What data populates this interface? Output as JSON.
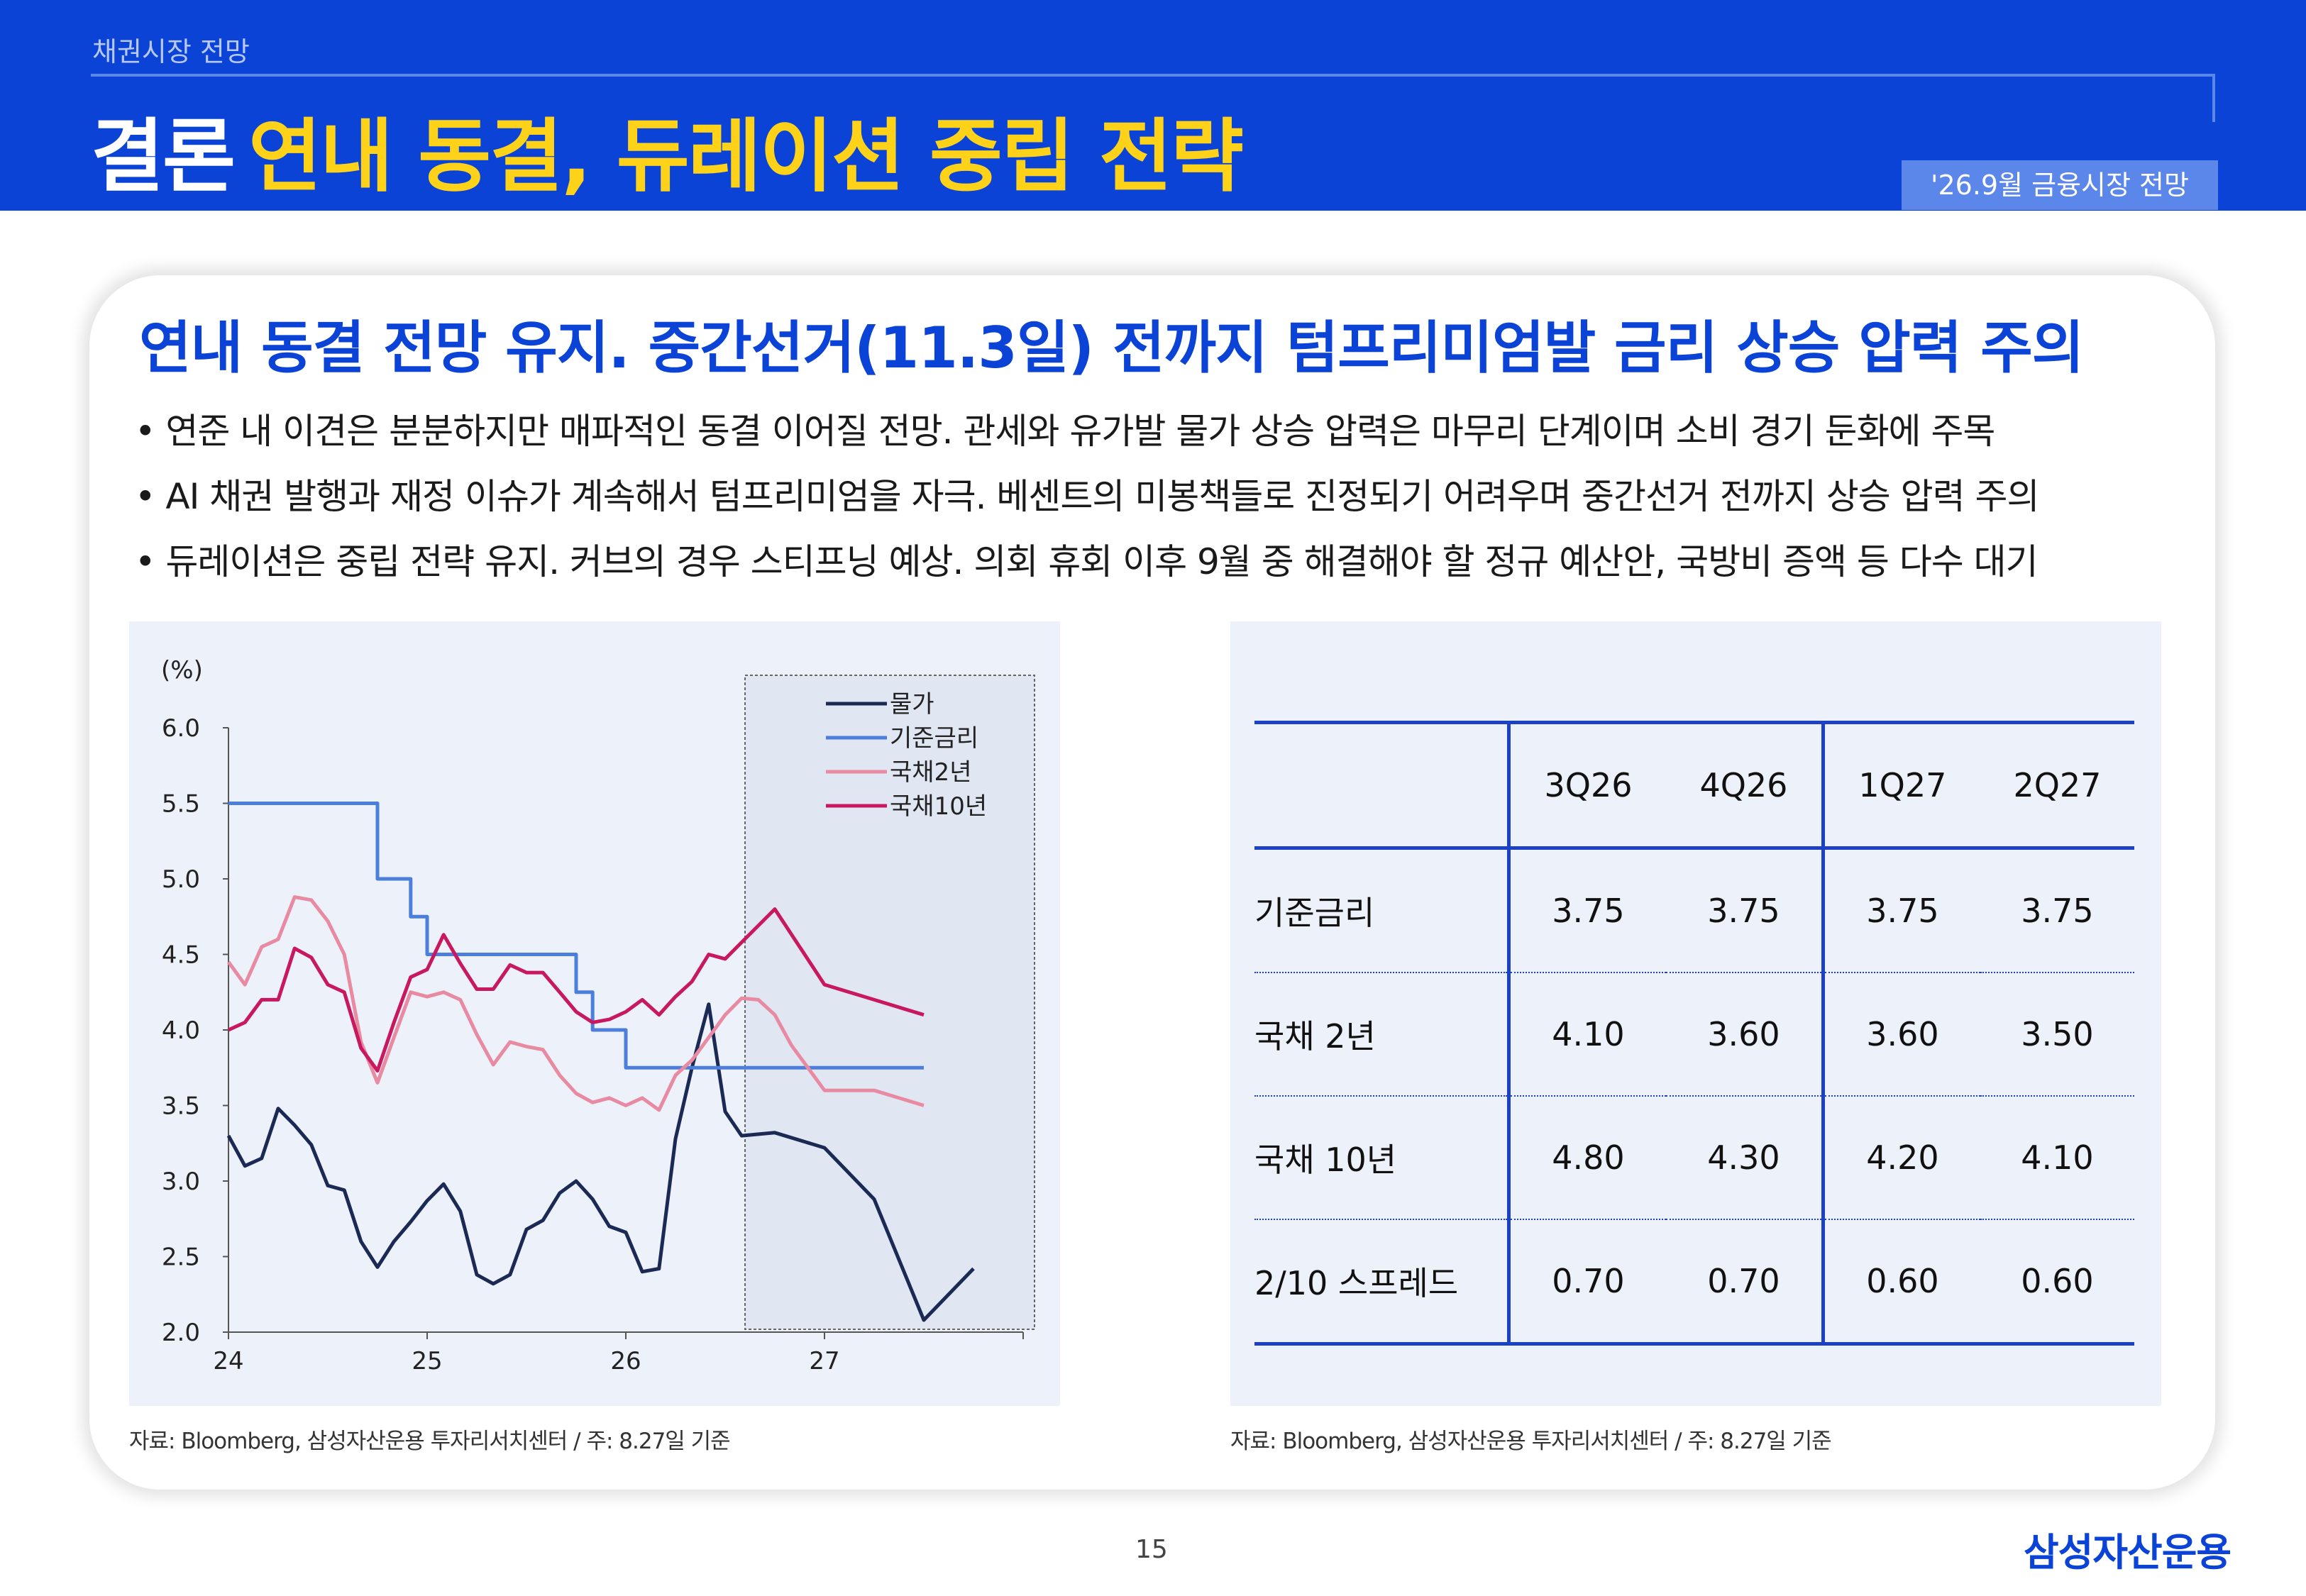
{
  "header": {
    "section_label": "채권시장 전망",
    "title_main": "결론",
    "title_accent": "연내 동결, 듀레이션 중립 전략",
    "date_badge": "'26.9월 금융시장 전망"
  },
  "subtitle": "연내 동결 전망 유지. 중간선거(11.3일) 전까지 텀프리미엄발 금리 상승 압력 주의",
  "bullets": [
    "• 연준 내 이견은 분분하지만 매파적인 동결 이어질 전망. 관세와 유가발 물가 상승 압력은 마무리 단계이며 소비 경기 둔화에 주목",
    "• AI 채권 발행과 재정 이슈가 계속해서 텀프리미엄을 자극. 베센트의 미봉책들로 진정되기 어려우며 중간선거 전까지 상승 압력 주의",
    "• 듀레이션은 중립 전략 유지. 커브의 경우 스티프닝 예상. 의회 휴회 이후 9월 중 해결해야 할 정규 예산안, 국방비 증액 등 다수 대기"
  ],
  "chart_data": {
    "type": "line",
    "ylabel": "(%)",
    "ylim": [
      2.0,
      6.0
    ],
    "y_ticks": [
      "6.0",
      "5.5",
      "5.0",
      "4.5",
      "4.0",
      "3.5",
      "3.0",
      "2.5",
      "2.0"
    ],
    "xlim": [
      24,
      28
    ],
    "x_ticks": [
      "24",
      "25",
      "26",
      "27"
    ],
    "forecast_shaded_from": 26.6,
    "legend_position": "top-right",
    "series": [
      {
        "name": "물가",
        "color": "#1b2a55",
        "x": [
          24.0,
          24.083,
          24.167,
          24.25,
          24.333,
          24.417,
          24.5,
          24.583,
          24.667,
          24.75,
          24.833,
          24.917,
          25.0,
          25.083,
          25.167,
          25.25,
          25.333,
          25.417,
          25.5,
          25.583,
          25.667,
          25.75,
          25.833,
          25.917,
          26.0,
          26.083,
          26.167,
          26.25,
          26.333,
          26.417,
          26.5,
          26.583,
          26.75,
          27.0,
          27.25,
          27.5,
          27.75
        ],
        "y": [
          3.3,
          3.1,
          3.15,
          3.48,
          3.37,
          3.24,
          2.97,
          2.94,
          2.6,
          2.43,
          2.6,
          2.73,
          2.87,
          2.98,
          2.8,
          2.38,
          2.32,
          2.38,
          2.68,
          2.74,
          2.92,
          3.0,
          2.88,
          2.7,
          2.66,
          2.4,
          2.42,
          3.28,
          3.75,
          4.17,
          3.46,
          3.3,
          3.32,
          3.22,
          2.88,
          2.08,
          2.42
        ]
      },
      {
        "name": "기준금리",
        "color": "#4c7fdc",
        "x": [
          24.0,
          24.75,
          24.75,
          24.917,
          24.917,
          25.0,
          25.0,
          25.75,
          25.75,
          25.833,
          25.833,
          26.0,
          26.0,
          27.5
        ],
        "y": [
          5.5,
          5.5,
          5.0,
          5.0,
          4.75,
          4.75,
          4.5,
          4.5,
          4.25,
          4.25,
          4.0,
          4.0,
          3.75,
          3.75
        ]
      },
      {
        "name": "국채2년",
        "color": "#e88aa2",
        "x": [
          24.0,
          24.083,
          24.167,
          24.25,
          24.333,
          24.417,
          24.5,
          24.583,
          24.667,
          24.75,
          24.833,
          24.917,
          25.0,
          25.083,
          25.167,
          25.25,
          25.333,
          25.417,
          25.5,
          25.583,
          25.667,
          25.75,
          25.833,
          25.917,
          26.0,
          26.083,
          26.167,
          26.25,
          26.333,
          26.417,
          26.5,
          26.583,
          26.667,
          26.75,
          26.833,
          27.0,
          27.25,
          27.5
        ],
        "y": [
          4.45,
          4.3,
          4.55,
          4.6,
          4.88,
          4.86,
          4.72,
          4.5,
          3.92,
          3.65,
          3.95,
          4.25,
          4.22,
          4.25,
          4.2,
          3.97,
          3.77,
          3.92,
          3.89,
          3.87,
          3.7,
          3.58,
          3.52,
          3.55,
          3.5,
          3.55,
          3.47,
          3.7,
          3.8,
          3.95,
          4.1,
          4.21,
          4.2,
          4.1,
          3.9,
          3.6,
          3.6,
          3.5
        ]
      },
      {
        "name": "국채10년",
        "color": "#c8185e",
        "x": [
          24.0,
          24.083,
          24.167,
          24.25,
          24.333,
          24.417,
          24.5,
          24.583,
          24.667,
          24.75,
          24.833,
          24.917,
          25.0,
          25.083,
          25.167,
          25.25,
          25.333,
          25.417,
          25.5,
          25.583,
          25.667,
          25.75,
          25.833,
          25.917,
          26.0,
          26.083,
          26.167,
          26.25,
          26.333,
          26.417,
          26.5,
          26.583,
          26.75,
          27.0,
          27.25,
          27.5
        ],
        "y": [
          4.0,
          4.05,
          4.2,
          4.2,
          4.54,
          4.48,
          4.3,
          4.25,
          3.88,
          3.73,
          4.05,
          4.35,
          4.4,
          4.63,
          4.44,
          4.27,
          4.27,
          4.43,
          4.38,
          4.38,
          4.25,
          4.12,
          4.05,
          4.07,
          4.12,
          4.2,
          4.1,
          4.22,
          4.32,
          4.5,
          4.47,
          4.58,
          4.8,
          4.3,
          4.2,
          4.1
        ]
      }
    ]
  },
  "forecast_table": {
    "columns": [
      "3Q26",
      "4Q26",
      "1Q27",
      "2Q27"
    ],
    "rows": [
      {
        "label": "기준금리",
        "values": [
          "3.75",
          "3.75",
          "3.75",
          "3.75"
        ]
      },
      {
        "label": "국채 2년",
        "values": [
          "4.10",
          "3.60",
          "3.60",
          "3.50"
        ]
      },
      {
        "label": "국채 10년",
        "values": [
          "4.80",
          "4.30",
          "4.20",
          "4.10"
        ]
      },
      {
        "label": "2/10 스프레드",
        "values": [
          "0.70",
          "0.70",
          "0.60",
          "0.60"
        ]
      }
    ]
  },
  "sources": {
    "left": "자료: Bloomberg, 삼성자산운용 투자리서치센터 / 주: 8.27일 기준",
    "right": "자료: Bloomberg, 삼성자산운용 투자리서치센터 / 주: 8.27일 기준"
  },
  "footer": {
    "page_number": "15",
    "logo_text": "삼성자산운용"
  }
}
